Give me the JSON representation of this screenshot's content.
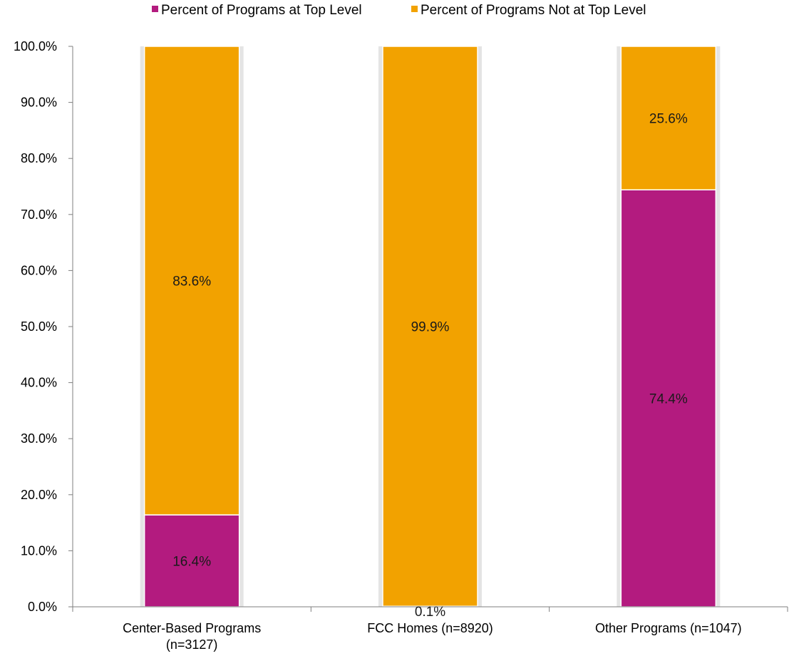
{
  "chart_data": {
    "type": "bar",
    "stacked": true,
    "categories": [
      [
        "Center-Based Programs",
        "(n=3127)"
      ],
      [
        "FCC Homes (n=8920)"
      ],
      [
        "Other Programs (n=1047)"
      ]
    ],
    "series": [
      {
        "name": "Percent of Programs at Top Level",
        "color": "#b31b7f",
        "values": [
          16.4,
          0.1,
          74.4
        ],
        "labels": [
          "16.4%",
          "0.1%",
          "74.4%"
        ]
      },
      {
        "name": "Percent of Programs Not at Top Level",
        "color": "#f2a200",
        "values": [
          83.6,
          99.9,
          25.6
        ],
        "labels": [
          "83.6%",
          "99.9%",
          "25.6%"
        ]
      }
    ],
    "ylim": [
      0,
      100
    ],
    "yticks": [
      "0.0%",
      "10.0%",
      "20.0%",
      "30.0%",
      "40.0%",
      "50.0%",
      "60.0%",
      "70.0%",
      "80.0%",
      "90.0%",
      "100.0%"
    ],
    "grid": false,
    "legend_position": "top"
  }
}
